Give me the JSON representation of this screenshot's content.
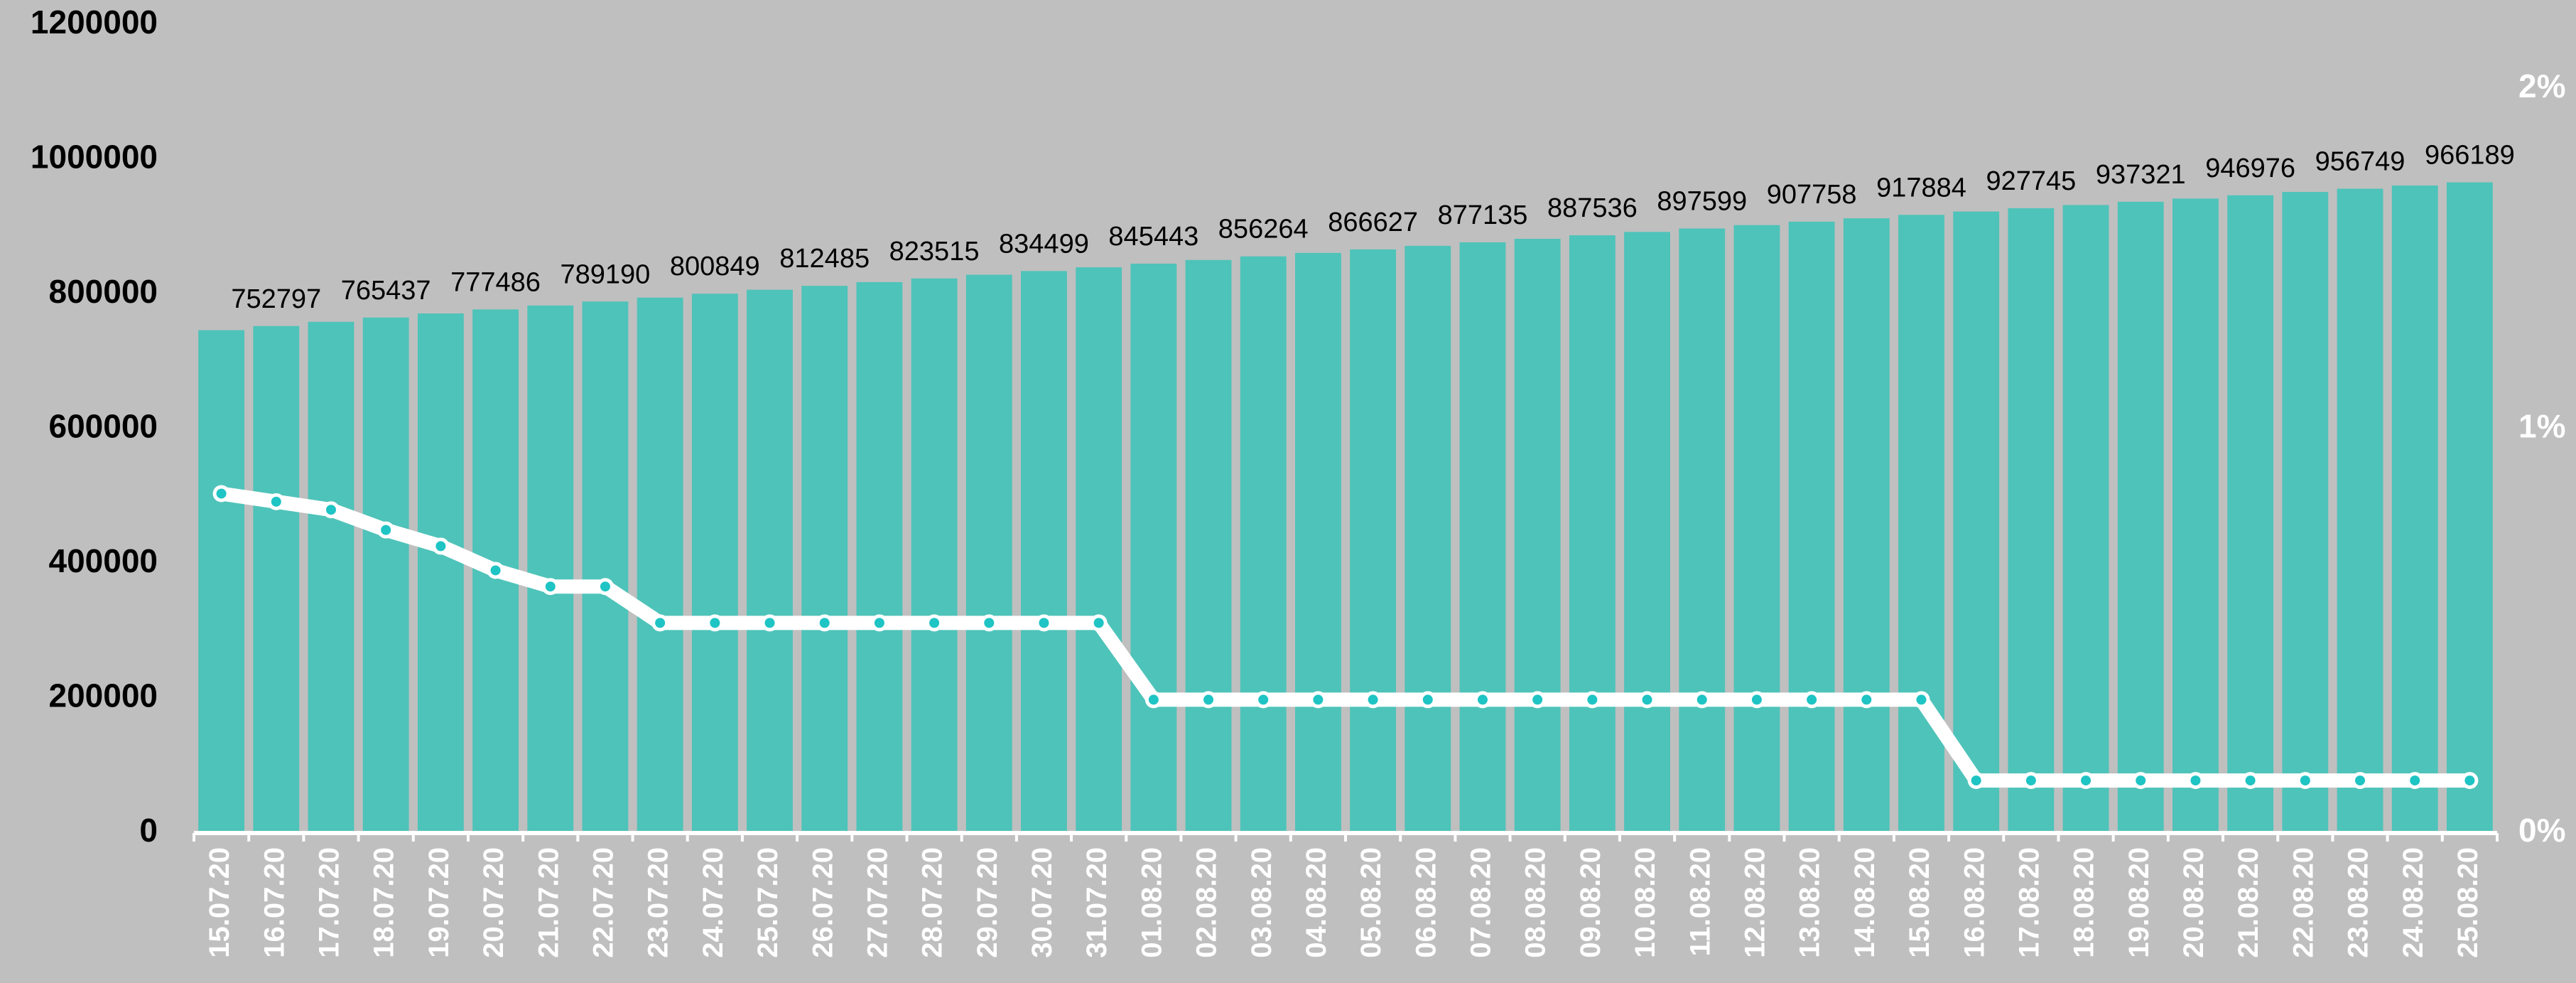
{
  "chart_data": {
    "type": "bar-line",
    "categories": [
      "15.07.20",
      "16.07.20",
      "17.07.20",
      "18.07.20",
      "19.07.20",
      "20.07.20",
      "21.07.20",
      "22.07.20",
      "23.07.20",
      "24.07.20",
      "25.07.20",
      "26.07.20",
      "27.07.20",
      "28.07.20",
      "29.07.20",
      "30.07.20",
      "31.07.20",
      "01.08.20",
      "02.08.20",
      "03.08.20",
      "04.08.20",
      "05.08.20",
      "06.08.20",
      "07.08.20",
      "08.08.20",
      "09.08.20",
      "10.08.20",
      "11.08.20",
      "12.08.20",
      "13.08.20",
      "14.08.20",
      "15.08.20",
      "16.08.20",
      "17.08.20",
      "18.08.20",
      "19.08.20",
      "20.08.20",
      "21.08.20",
      "22.08.20",
      "23.08.20",
      "24.08.20",
      "25.08.20"
    ],
    "series": [
      {
        "type": "bar",
        "color": "#4ec3b9",
        "values": [
          746700,
          752797,
          759100,
          765437,
          771500,
          777486,
          783300,
          789190,
          795000,
          800849,
          806700,
          812485,
          818000,
          823515,
          829000,
          834499,
          840000,
          845443,
          850900,
          856264,
          861400,
          866627,
          871900,
          877135,
          882300,
          887536,
          892600,
          897599,
          902700,
          907758,
          912800,
          917884,
          922800,
          927745,
          932500,
          937321,
          942100,
          946976,
          951900,
          956749,
          961500,
          966189
        ],
        "value_labels": [
          null,
          "752797",
          null,
          "765437",
          null,
          "777486",
          null,
          "789190",
          null,
          "800849",
          null,
          "812485",
          null,
          "823515",
          null,
          "834499",
          null,
          "845443",
          null,
          "856264",
          null,
          "866627",
          null,
          "877135",
          null,
          "887536",
          null,
          "897599",
          null,
          "907758",
          null,
          "917884",
          null,
          "927745",
          null,
          "937321",
          null,
          "946976",
          null,
          "956749",
          null,
          "966189"
        ]
      },
      {
        "type": "line",
        "axis": "y2",
        "color": "#ffffff",
        "marker_color": "#1fc4c4",
        "values": [
          0.84,
          0.82,
          0.8,
          0.75,
          0.71,
          0.65,
          0.61,
          0.61,
          0.52,
          0.52,
          0.52,
          0.52,
          0.52,
          0.52,
          0.52,
          0.52,
          0.52,
          0.33,
          0.33,
          0.33,
          0.33,
          0.33,
          0.33,
          0.33,
          0.33,
          0.33,
          0.33,
          0.33,
          0.33,
          0.33,
          0.33,
          0.33,
          0.13,
          0.13,
          0.13,
          0.13,
          0.13,
          0.13,
          0.13,
          0.13,
          0.13,
          0.13
        ]
      }
    ],
    "ylim": [
      0,
      1200000
    ],
    "yticks": [
      0,
      200000,
      400000,
      600000,
      800000,
      1000000,
      1200000
    ],
    "y2lim": [
      0,
      2
    ],
    "y2ticks": [
      {
        "value": 0,
        "label": "0%"
      },
      {
        "value": 1,
        "label": "1%"
      },
      {
        "value": 2,
        "label": "2%"
      }
    ],
    "background": "#bfbfbf"
  }
}
